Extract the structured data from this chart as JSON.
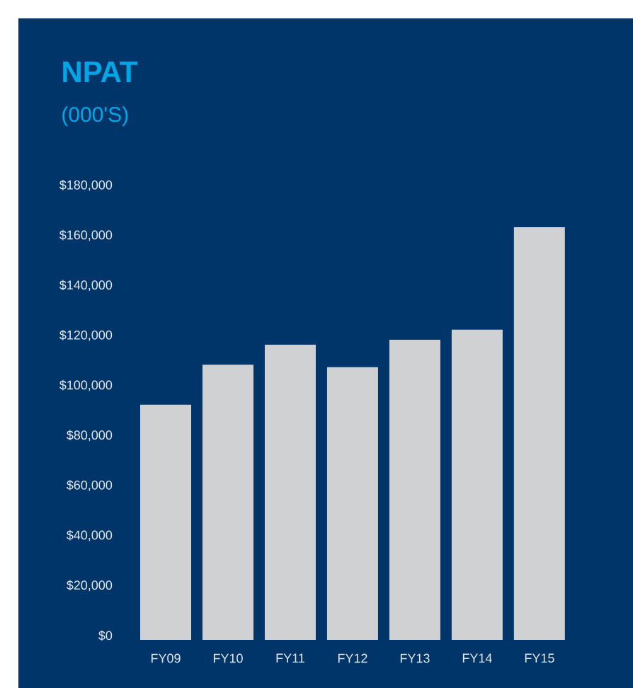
{
  "chart_data": {
    "type": "bar",
    "title": "NPAT",
    "subtitle": "(000'S)",
    "categories": [
      "FY09",
      "FY10",
      "FY11",
      "FY12",
      "FY13",
      "FY14",
      "FY15"
    ],
    "values": [
      94000,
      110000,
      118000,
      109000,
      120000,
      124000,
      165000
    ],
    "color": "#d0d1d3",
    "ylim": [
      0,
      180000
    ],
    "yticks": [
      {
        "value": 0,
        "label": "$0"
      },
      {
        "value": 20000,
        "label": "$20,000"
      },
      {
        "value": 40000,
        "label": "$40,000"
      },
      {
        "value": 60000,
        "label": "$60,000"
      },
      {
        "value": 80000,
        "label": "$80,000"
      },
      {
        "value": 100000,
        "label": "$100,000"
      },
      {
        "value": 120000,
        "label": "$120,000"
      },
      {
        "value": 140000,
        "label": "$140,000"
      },
      {
        "value": 160000,
        "label": "$160,000"
      },
      {
        "value": 180000,
        "label": "$180,000"
      }
    ],
    "grid": false
  }
}
